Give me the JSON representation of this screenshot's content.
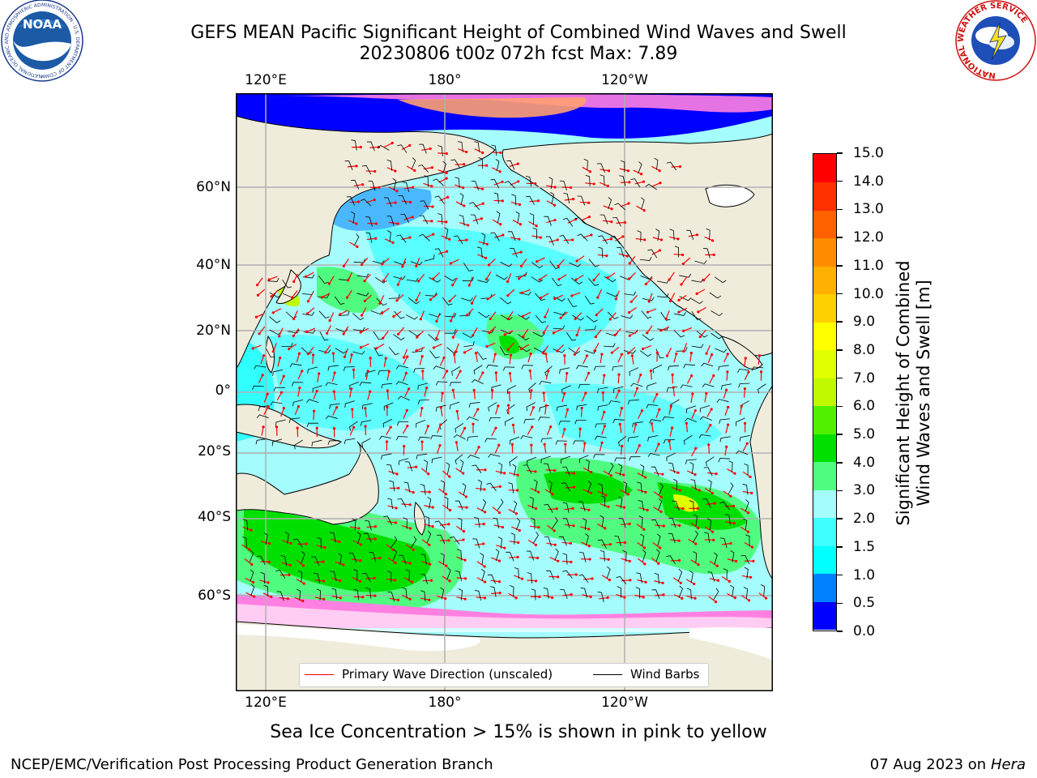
{
  "title": {
    "line1": "GEFS MEAN Pacific Significant Height of Combined Wind Waves and Swell",
    "line2": "20230806 t00z 072h fcst   Max: 7.89"
  },
  "logos": {
    "noaa": {
      "text": "NOAA",
      "ring_text": "NATIONAL OCEANIC AND ATMOSPHERIC ADMINISTRATION · U.S. DEPARTMENT OF COMMERCE"
    },
    "nws": {
      "ring_text": "NATIONAL WEATHER SERVICE"
    }
  },
  "map": {
    "projection": "Mercator",
    "lon_ticks_top": [
      "120°E",
      "180°",
      "120°W"
    ],
    "lon_ticks_bottom": [
      "120°E",
      "180°",
      "120°W"
    ],
    "lat_ticks": [
      "60°N",
      "40°N",
      "20°N",
      "0°",
      "20°S",
      "40°S",
      "60°S"
    ],
    "legend": {
      "wave": {
        "label": "Primary Wave Direction (unscaled)",
        "color": "#ff0000"
      },
      "barb": {
        "label": "Wind Barbs",
        "color": "#000000"
      }
    },
    "colors": {
      "land": "#efecdc",
      "ocean": "#a4fcfc",
      "grid": "#b0b0b0"
    }
  },
  "colorbar": {
    "label_line1": "Significant Height of Combined",
    "label_line2": "Wind Waves and Swell [m]",
    "ticks": [
      "0.0",
      "0.5",
      "1.0",
      "1.5",
      "2.0",
      "3.0",
      "4.0",
      "5.0",
      "6.0",
      "7.0",
      "8.0",
      "9.0",
      "10.0",
      "11.0",
      "12.0",
      "13.0",
      "14.0",
      "15.0"
    ],
    "colors": [
      "#0000ff",
      "#0080ff",
      "#00ffff",
      "#40ffff",
      "#a4fcfc",
      "#50fc80",
      "#00e000",
      "#50f000",
      "#c0f800",
      "#e0ff00",
      "#ffff00",
      "#ffd000",
      "#ffb000",
      "#ff8c00",
      "#ff6000",
      "#ff3000",
      "#ff0000"
    ]
  },
  "footer": {
    "ice_note": "Sea Ice Concentration > 15% is shown in pink to yellow",
    "branch": "NCEP/EMC/Verification Post Processing Product Generation Branch",
    "date": "07 Aug 2023 on",
    "host": "Hera"
  }
}
